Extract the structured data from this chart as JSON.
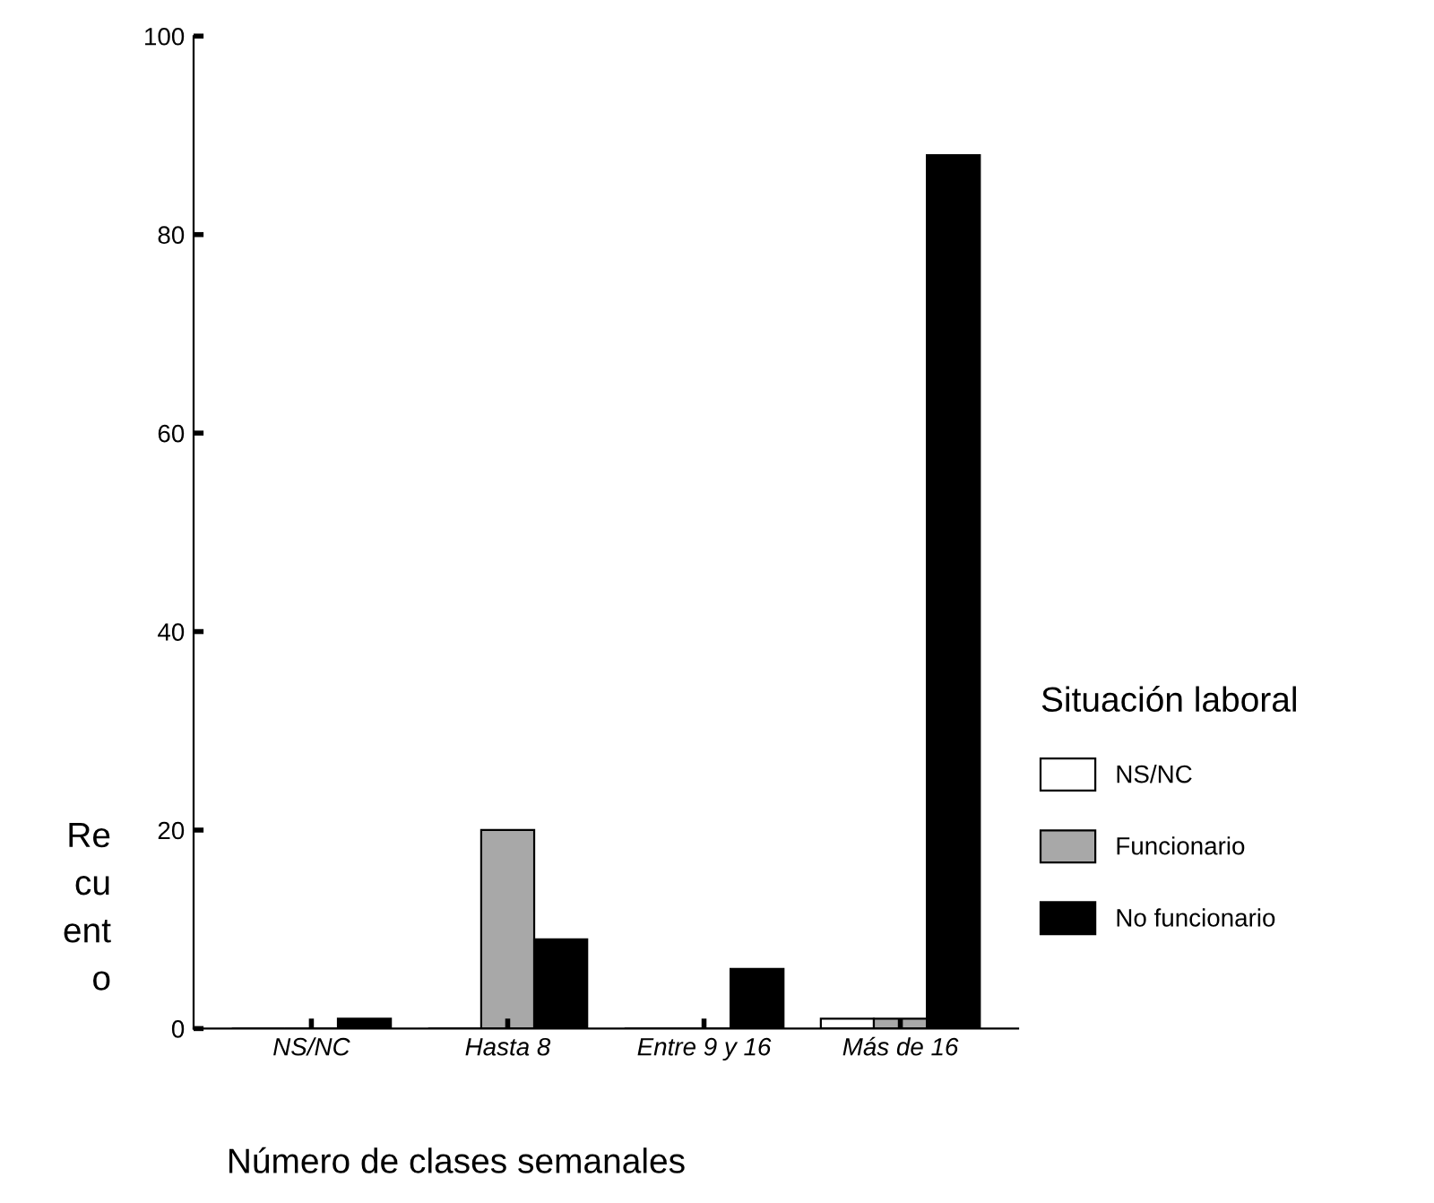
{
  "chart_data": {
    "type": "bar",
    "xlabel": "Número de clases semanales",
    "ylabel": "Re\ncu\nent\no",
    "legend_title": "Situación laboral",
    "categories": [
      "NS/NC",
      "Hasta 8",
      "Entre 9 y 16",
      "Más de 16"
    ],
    "series": [
      {
        "name": "NS/NC",
        "color": "#ffffff",
        "values": [
          0,
          0,
          0,
          1
        ]
      },
      {
        "name": "Funcionario",
        "color": "#a8a8a8",
        "values": [
          0,
          20,
          0,
          1
        ]
      },
      {
        "name": "No funcionario",
        "color": "#000000",
        "values": [
          1,
          9,
          6,
          88
        ]
      }
    ],
    "ylim": [
      0,
      100
    ],
    "yticks": [
      0,
      20,
      40,
      60,
      80,
      100
    ],
    "grid": false,
    "legend": "right"
  }
}
